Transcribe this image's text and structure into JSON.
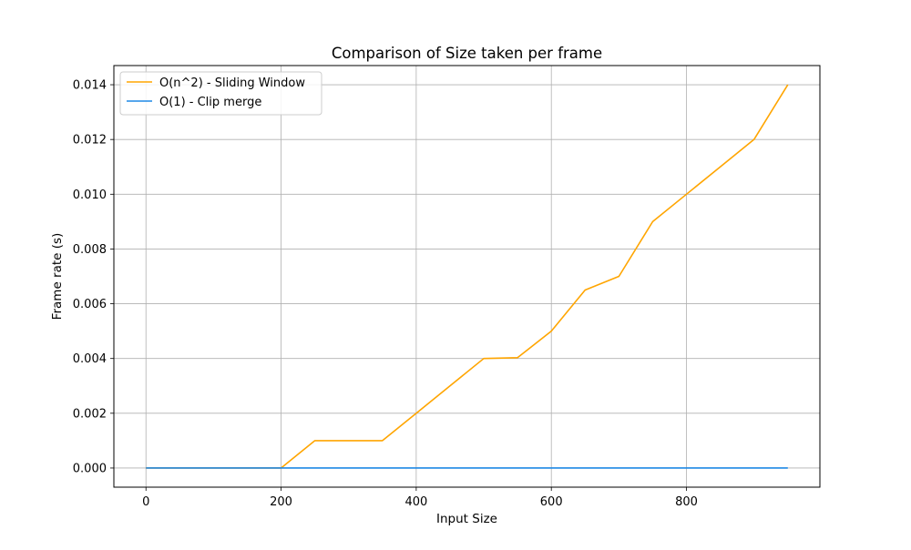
{
  "chart_data": {
    "type": "line",
    "title": "Comparison of Size taken per frame",
    "xlabel": "Input Size",
    "ylabel": "Frame rate (s)",
    "xlim": [
      -47.5,
      997.5
    ],
    "ylim": [
      -0.0007,
      0.0147
    ],
    "x_ticks": [
      0,
      200,
      400,
      600,
      800
    ],
    "y_ticks": [
      0.0,
      0.002,
      0.004,
      0.006,
      0.008,
      0.01,
      0.012,
      0.014
    ],
    "x_tick_labels": [
      "0",
      "200",
      "400",
      "600",
      "800"
    ],
    "y_tick_labels": [
      "0.000",
      "0.002",
      "0.004",
      "0.006",
      "0.008",
      "0.010",
      "0.012",
      "0.014"
    ],
    "grid": true,
    "legend_position": "upper-left",
    "x": [
      0,
      50,
      100,
      150,
      200,
      250,
      300,
      350,
      400,
      450,
      500,
      550,
      600,
      650,
      700,
      750,
      800,
      850,
      900,
      950
    ],
    "series": [
      {
        "name": "O(n^2) - Sliding Window",
        "color": "#ffa500",
        "values": [
          0,
          0,
          0,
          0,
          0,
          0.001,
          0.001,
          0.001,
          0.002,
          0.003,
          0.004,
          0.00403,
          0.005,
          0.0065,
          0.007,
          0.009,
          0.01,
          0.011,
          0.012,
          0.014
        ]
      },
      {
        "name": "O(1) - Clip merge",
        "color": "#1e88e5",
        "values": [
          0,
          0,
          0,
          0,
          0,
          0,
          0,
          0,
          0,
          0,
          0,
          0,
          0,
          0,
          0,
          0,
          0,
          0,
          0,
          0
        ]
      }
    ]
  }
}
